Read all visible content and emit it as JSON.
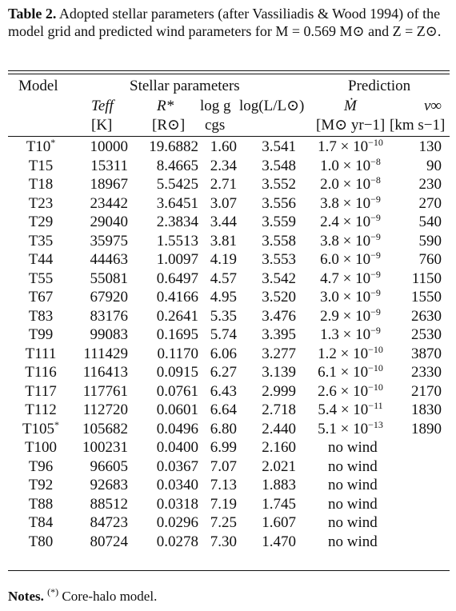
{
  "caption": {
    "label": "Table 2.",
    "text": "Adopted stellar parameters (after Vassiliadis & Wood 1994) of the model grid and predicted wind parameters for M = 0.569 M⊙ and Z = Z⊙."
  },
  "header": {
    "model": "Model",
    "stellar_group": "Stellar parameters",
    "prediction_group": "Prediction",
    "teff": "Teff",
    "teff_unit": "[K]",
    "rstar": "R*",
    "rstar_unit": "[R⊙]",
    "logg": "log g",
    "logg_unit": "cgs",
    "logl": "log(L/L⊙)",
    "mdot": "Ṁ",
    "mdot_unit": "[M⊙ yr−1]",
    "vinf": "v∞",
    "vinf_unit": "[km s−1]"
  },
  "rows": [
    {
      "model": "T10",
      "star": "*",
      "teff": "10000",
      "r": "19.6882",
      "logg": "1.60",
      "logl": "3.541",
      "mdot_m": "1.7",
      "mdot_e": "−10",
      "vinf": "130"
    },
    {
      "model": "T15",
      "star": "",
      "teff": "15311",
      "r": "8.4665",
      "logg": "2.34",
      "logl": "3.548",
      "mdot_m": "1.0",
      "mdot_e": "−8",
      "vinf": "90"
    },
    {
      "model": "T18",
      "star": "",
      "teff": "18967",
      "r": "5.5425",
      "logg": "2.71",
      "logl": "3.552",
      "mdot_m": "2.0",
      "mdot_e": "−8",
      "vinf": "230"
    },
    {
      "model": "T23",
      "star": "",
      "teff": "23442",
      "r": "3.6451",
      "logg": "3.07",
      "logl": "3.556",
      "mdot_m": "3.8",
      "mdot_e": "−9",
      "vinf": "270"
    },
    {
      "model": "T29",
      "star": "",
      "teff": "29040",
      "r": "2.3834",
      "logg": "3.44",
      "logl": "3.559",
      "mdot_m": "2.4",
      "mdot_e": "−9",
      "vinf": "540"
    },
    {
      "model": "T35",
      "star": "",
      "teff": "35975",
      "r": "1.5513",
      "logg": "3.81",
      "logl": "3.558",
      "mdot_m": "3.8",
      "mdot_e": "−9",
      "vinf": "590"
    },
    {
      "model": "T44",
      "star": "",
      "teff": "44463",
      "r": "1.0097",
      "logg": "4.19",
      "logl": "3.553",
      "mdot_m": "6.0",
      "mdot_e": "−9",
      "vinf": "760"
    },
    {
      "model": "T55",
      "star": "",
      "teff": "55081",
      "r": "0.6497",
      "logg": "4.57",
      "logl": "3.542",
      "mdot_m": "4.7",
      "mdot_e": "−9",
      "vinf": "1150"
    },
    {
      "model": "T67",
      "star": "",
      "teff": "67920",
      "r": "0.4166",
      "logg": "4.95",
      "logl": "3.520",
      "mdot_m": "3.0",
      "mdot_e": "−9",
      "vinf": "1550"
    },
    {
      "model": "T83",
      "star": "",
      "teff": "83176",
      "r": "0.2641",
      "logg": "5.35",
      "logl": "3.476",
      "mdot_m": "2.9",
      "mdot_e": "−9",
      "vinf": "2630"
    },
    {
      "model": "T99",
      "star": "",
      "teff": "99083",
      "r": "0.1695",
      "logg": "5.74",
      "logl": "3.395",
      "mdot_m": "1.3",
      "mdot_e": "−9",
      "vinf": "2530"
    },
    {
      "model": "T111",
      "star": "",
      "teff": "111429",
      "r": "0.1170",
      "logg": "6.06",
      "logl": "3.277",
      "mdot_m": "1.2",
      "mdot_e": "−10",
      "vinf": "3870"
    },
    {
      "model": "T116",
      "star": "",
      "teff": "116413",
      "r": "0.0915",
      "logg": "6.27",
      "logl": "3.139",
      "mdot_m": "6.1",
      "mdot_e": "−10",
      "vinf": "2330"
    },
    {
      "model": "T117",
      "star": "",
      "teff": "117761",
      "r": "0.0761",
      "logg": "6.43",
      "logl": "2.999",
      "mdot_m": "2.6",
      "mdot_e": "−10",
      "vinf": "2170"
    },
    {
      "model": "T112",
      "star": "",
      "teff": "112720",
      "r": "0.0601",
      "logg": "6.64",
      "logl": "2.718",
      "mdot_m": "5.4",
      "mdot_e": "−11",
      "vinf": "1830"
    },
    {
      "model": "T105",
      "star": "*",
      "teff": "105682",
      "r": "0.0496",
      "logg": "6.80",
      "logl": "2.440",
      "mdot_m": "5.1",
      "mdot_e": "−13",
      "vinf": "1890"
    },
    {
      "model": "T100",
      "star": "",
      "teff": "100231",
      "r": "0.0400",
      "logg": "6.99",
      "logl": "2.160",
      "nowind": "no wind"
    },
    {
      "model": "T96",
      "star": "",
      "teff": "96605",
      "r": "0.0367",
      "logg": "7.07",
      "logl": "2.021",
      "nowind": "no wind"
    },
    {
      "model": "T92",
      "star": "",
      "teff": "92683",
      "r": "0.0340",
      "logg": "7.13",
      "logl": "1.883",
      "nowind": "no wind"
    },
    {
      "model": "T88",
      "star": "",
      "teff": "88512",
      "r": "0.0318",
      "logg": "7.19",
      "logl": "1.745",
      "nowind": "no wind"
    },
    {
      "model": "T84",
      "star": "",
      "teff": "84723",
      "r": "0.0296",
      "logg": "7.25",
      "logl": "1.607",
      "nowind": "no wind"
    },
    {
      "model": "T80",
      "star": "",
      "teff": "80724",
      "r": "0.0278",
      "logg": "7.30",
      "logl": "1.470",
      "nowind": "no wind"
    }
  ],
  "notes": {
    "label": "Notes.",
    "marker": "(*)",
    "text": "Core-halo model."
  }
}
